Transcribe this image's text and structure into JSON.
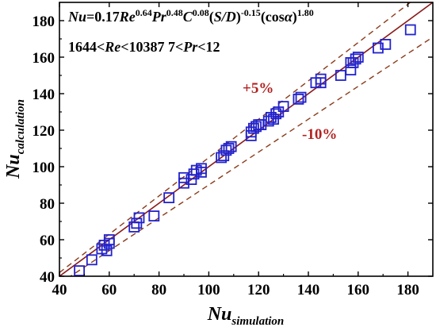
{
  "colors": {
    "axis": "#000000",
    "marker": "#2222cc",
    "ideal_line": "#8b1a1a",
    "band_line": "#8b3a1a",
    "annotation": "#b22222"
  },
  "chart_data": {
    "type": "scatter",
    "title": "",
    "xlabel": {
      "main": "Nu",
      "sub": "simulation"
    },
    "ylabel": {
      "main": "Nu",
      "sub": "calculation"
    },
    "xlim": [
      40,
      190
    ],
    "ylim": [
      40,
      190
    ],
    "xticks": [
      40,
      60,
      80,
      100,
      120,
      140,
      160,
      180
    ],
    "yticks": [
      40,
      60,
      80,
      100,
      120,
      140,
      160,
      180
    ],
    "xtick_labels": [
      "40",
      "60",
      "80",
      "100",
      "120",
      "140",
      "160",
      "180"
    ],
    "ytick_labels": [
      "40",
      "60",
      "80",
      "100",
      "120",
      "140",
      "160",
      "180"
    ],
    "grid": false,
    "marker": "open-square",
    "reference_lines": [
      {
        "label": "",
        "slope": 1.0,
        "style": "solid"
      },
      {
        "label": "+5%",
        "slope": 1.05,
        "style": "dashed"
      },
      {
        "label": "-10%",
        "slope": 0.9,
        "style": "dashed"
      }
    ],
    "annotations": {
      "equation": "Nu=0.17Re^0.64 Pr^0.48 C^0.08 (S/D)^-0.15 (cosα)^1.80",
      "range": "1644<Re<10387  7<Pr<12",
      "plus": "+5%",
      "minus": "-10%"
    },
    "points": [
      [
        48,
        43
      ],
      [
        53,
        49
      ],
      [
        57,
        55
      ],
      [
        58,
        57
      ],
      [
        59,
        54
      ],
      [
        60,
        58
      ],
      [
        60,
        60
      ],
      [
        70,
        67
      ],
      [
        71,
        69
      ],
      [
        72,
        72
      ],
      [
        78,
        73
      ],
      [
        84,
        83
      ],
      [
        90,
        91
      ],
      [
        90,
        94
      ],
      [
        93,
        93
      ],
      [
        94,
        96
      ],
      [
        95,
        98
      ],
      [
        97,
        99
      ],
      [
        97,
        97
      ],
      [
        105,
        105
      ],
      [
        106,
        106
      ],
      [
        107,
        109
      ],
      [
        108,
        110
      ],
      [
        109,
        111
      ],
      [
        117,
        117
      ],
      [
        117,
        119
      ],
      [
        118,
        121
      ],
      [
        119,
        122
      ],
      [
        120,
        123
      ],
      [
        121,
        123
      ],
      [
        124,
        125
      ],
      [
        125,
        127
      ],
      [
        126,
        126
      ],
      [
        127,
        129
      ],
      [
        128,
        130
      ],
      [
        130,
        133
      ],
      [
        136,
        137
      ],
      [
        137,
        138
      ],
      [
        143,
        146
      ],
      [
        145,
        148
      ],
      [
        145,
        146
      ],
      [
        153,
        150
      ],
      [
        157,
        153
      ],
      [
        157,
        157
      ],
      [
        158,
        157
      ],
      [
        159,
        159
      ],
      [
        160,
        160
      ],
      [
        168,
        165
      ],
      [
        171,
        167
      ],
      [
        181,
        175
      ]
    ]
  }
}
